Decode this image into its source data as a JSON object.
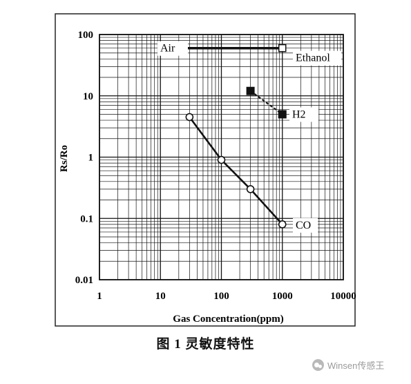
{
  "figure": {
    "caption": "图 1   灵敏度特性",
    "watermark": "Winsen传感王"
  },
  "chart_data": {
    "type": "line",
    "xscale": "log",
    "yscale": "log",
    "xlim": [
      1,
      10000
    ],
    "ylim": [
      0.01,
      100
    ],
    "xlabel": "Gas Concentration(ppm)",
    "ylabel": "Rs/Ro",
    "xticks": [
      "1",
      "10",
      "100",
      "1000",
      "10000"
    ],
    "yticks": [
      "100",
      "10",
      "1",
      "0.1",
      "0.01"
    ],
    "grid": true,
    "series": [
      {
        "name": "Air",
        "x": [
          10,
          1000
        ],
        "y": [
          60,
          60
        ],
        "style": "line",
        "marker": "none"
      },
      {
        "name": "Ethanol",
        "x": [
          1000
        ],
        "y": [
          60
        ],
        "style": "marker",
        "marker": "square"
      },
      {
        "name": "H2",
        "x": [
          300,
          1000
        ],
        "y": [
          12,
          5
        ],
        "style": "dashed",
        "marker": "square-filled"
      },
      {
        "name": "CO",
        "x": [
          30,
          100,
          300,
          1000
        ],
        "y": [
          4.5,
          0.9,
          0.3,
          0.08
        ],
        "style": "line",
        "marker": "circle-open"
      }
    ]
  }
}
